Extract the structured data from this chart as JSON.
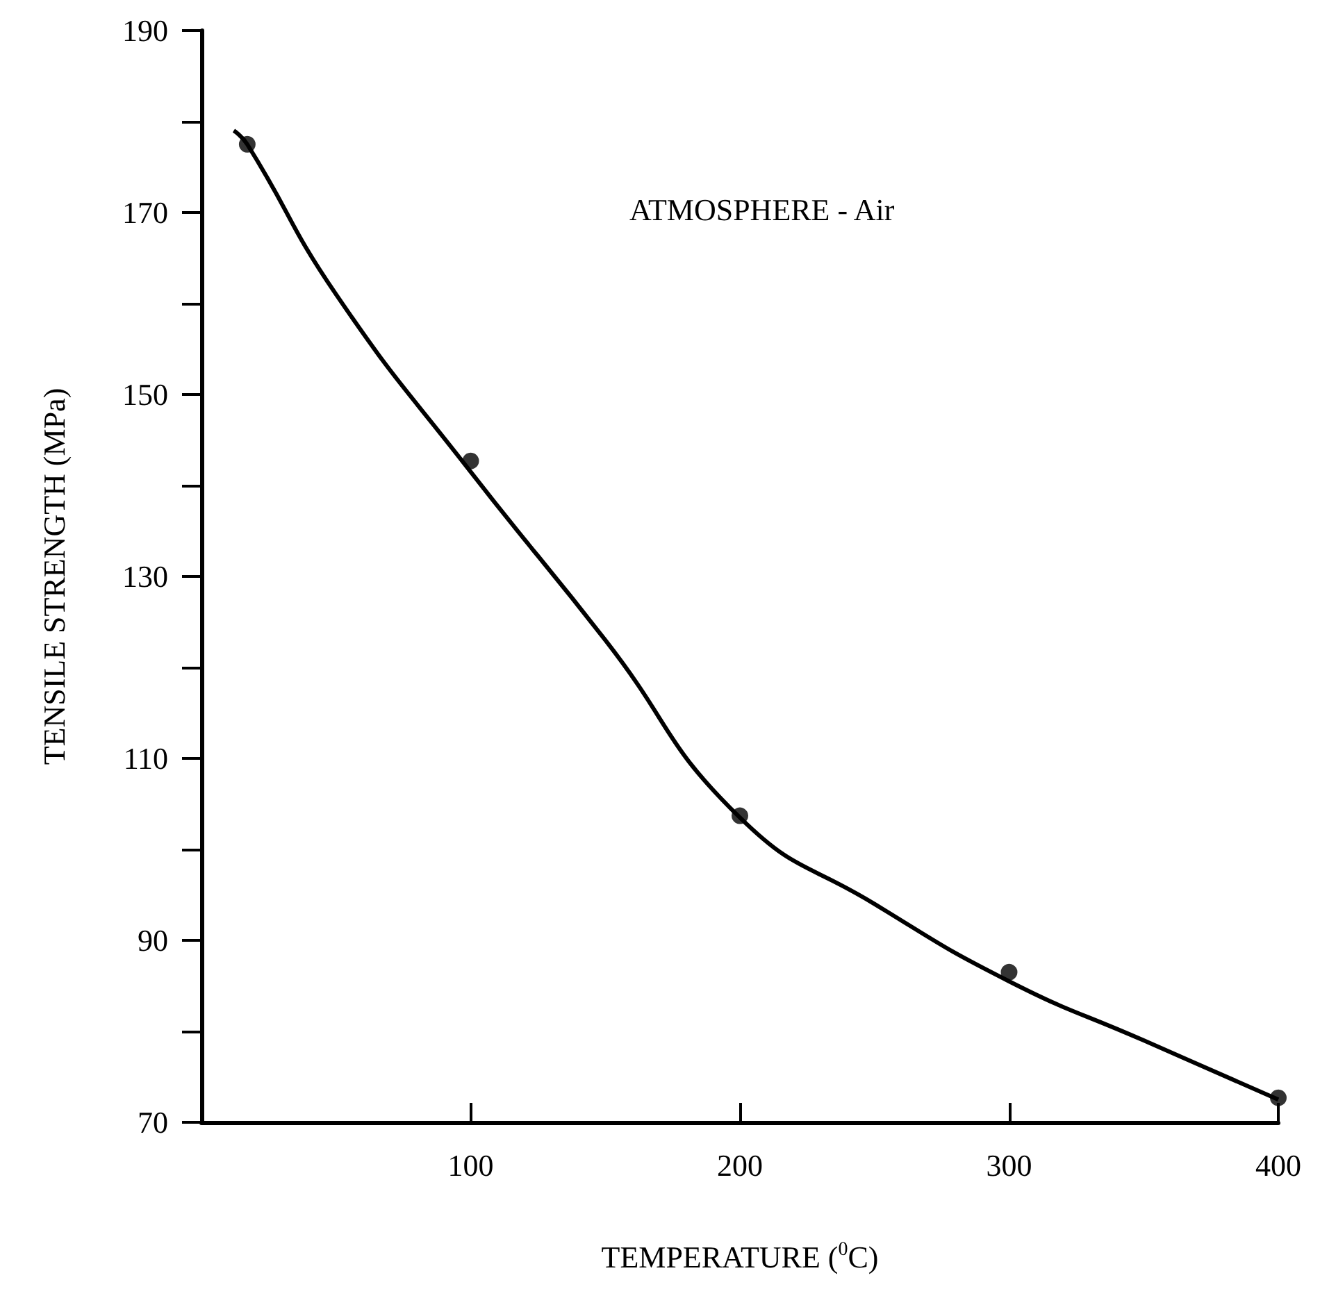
{
  "chart_data": {
    "type": "scatter",
    "xlabel": "TEMPERATURE ($^{0}$C)",
    "ylabel": "TENSILE STRENGTH (MPa)",
    "annotations": [
      "ATMOSPHERE - Air"
    ],
    "xlim": [
      0,
      400
    ],
    "xticks": [
      100,
      200,
      300,
      400
    ],
    "ylim": [
      70,
      190
    ],
    "yticks": [
      70,
      {
        "value": 80,
        "label": null
      },
      90,
      {
        "value": 100,
        "label": null
      },
      110,
      {
        "value": 120,
        "label": null
      },
      130,
      {
        "value": 140,
        "label": null
      },
      150,
      {
        "value": 160,
        "label": null
      },
      170,
      {
        "value": 180,
        "label": null
      },
      190
    ],
    "grid": false,
    "marker": "circle",
    "series": [
      {
        "type": "line",
        "marker": "none",
        "line_style": "solid",
        "color": "#000000",
        "x": [
          12,
          17,
          50,
          100,
          150,
          200,
          250,
          300,
          350,
          400
        ],
        "values": [
          179,
          177.5,
          161,
          141.5,
          123,
          103.5,
          94,
          85.5,
          79,
          72.5
        ]
      },
      {
        "color": "#000000",
        "x": [
          17,
          100,
          200,
          300,
          400
        ],
        "values": [
          177.5,
          142.7,
          103.7,
          86.5,
          72.7
        ]
      }
    ]
  }
}
